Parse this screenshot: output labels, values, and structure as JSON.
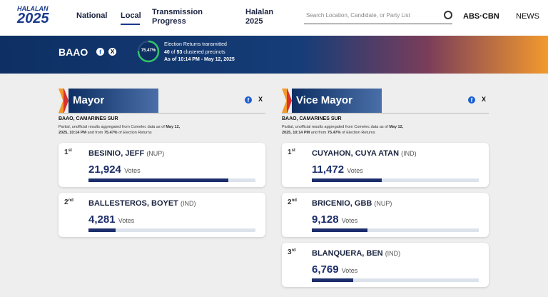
{
  "header": {
    "logo_top": "HALALAN",
    "logo_bottom": "2025",
    "nav": [
      "National",
      "Local",
      "Transmission Progress",
      "Halalan 2025"
    ],
    "search_placeholder": "Search Location, Candidate, or Party List",
    "brand": "ABS·CBN",
    "brand_suffix": "NEWS"
  },
  "banner": {
    "place": "BAAO",
    "progress": {
      "value": 75.47,
      "label": "75.47%"
    },
    "line1": "Election Returns transmitted",
    "transmitted": "40",
    "of": "of",
    "total": "53",
    "precincts": "clustered precincts",
    "as_of": "As of 10:14 PM - May 12, 2025"
  },
  "note": [
    "Partial, unofficial results aggregated from Comelec data as of",
    "May 12, 2025, 10:14 PM",
    "and from",
    "75.47%",
    "of Election Returns"
  ],
  "races": [
    {
      "title": "Mayor",
      "location": "BAAO, CAMARINES SUR",
      "candidates": [
        {
          "rank": "1",
          "suffix": "st",
          "name": "BESINIO, JEFF",
          "party": "(NUP)",
          "votes": 21924,
          "votes_label": "21,924",
          "unit": "Votes"
        },
        {
          "rank": "2",
          "suffix": "nd",
          "name": "BALLESTEROS, BOYET",
          "party": "(IND)",
          "votes": 4281,
          "votes_label": "4,281",
          "unit": "Votes"
        }
      ]
    },
    {
      "title": "Vice Mayor",
      "location": "BAAO, CAMARINES SUR",
      "candidates": [
        {
          "rank": "1",
          "suffix": "st",
          "name": "CUYAHON, CUYA ATAN",
          "party": "(IND)",
          "votes": 11472,
          "votes_label": "11,472",
          "unit": "Votes"
        },
        {
          "rank": "2",
          "suffix": "nd",
          "name": "BRICENIO, GBB",
          "party": "(NUP)",
          "votes": 9128,
          "votes_label": "9,128",
          "unit": "Votes"
        },
        {
          "rank": "3",
          "suffix": "rd",
          "name": "BLANQUERA, BEN",
          "party": "(IND)",
          "votes": 6769,
          "votes_label": "6,769",
          "unit": "Votes"
        }
      ]
    }
  ]
}
